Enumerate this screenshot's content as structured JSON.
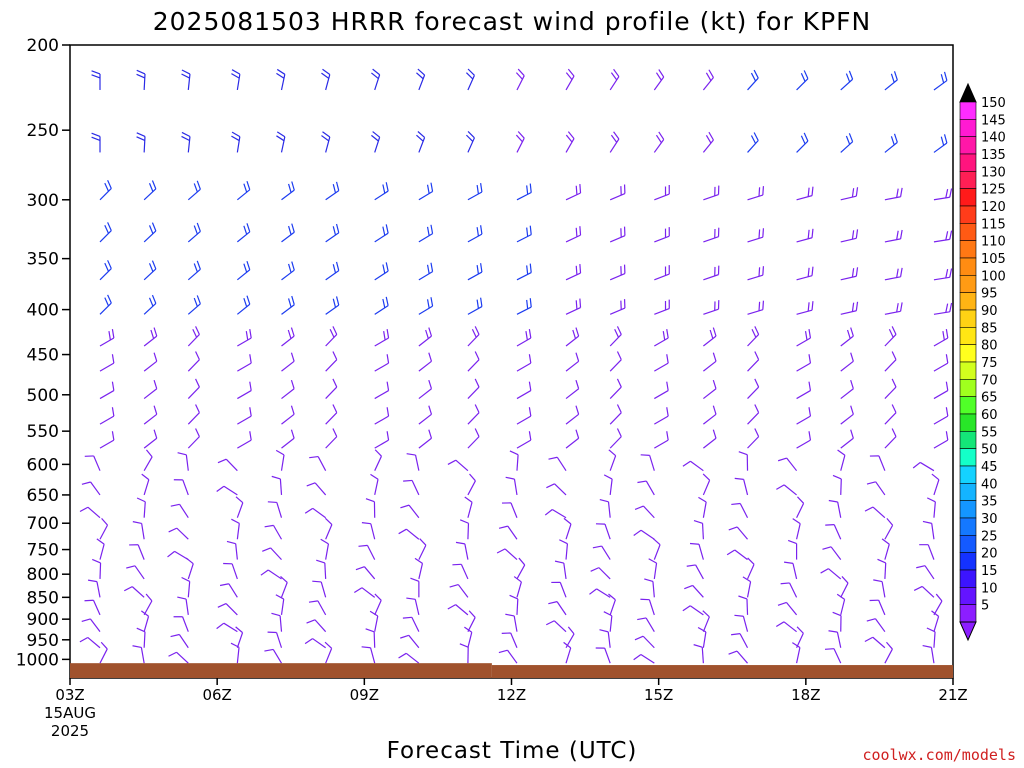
{
  "chart_data": {
    "type": "wind-barb profile",
    "title": "2025081503 HRRR forecast wind profile (kt) for KPFN",
    "xlabel": "Forecast Time (UTC)",
    "ylabel": "",
    "y_axis": {
      "scale": "log",
      "inverted": true,
      "range": [
        200,
        1050
      ],
      "ticks": [
        "200",
        "250",
        "300",
        "350",
        "400",
        "450",
        "500",
        "550",
        "600",
        "650",
        "700",
        "750",
        "800",
        "850",
        "900",
        "950",
        "1000"
      ]
    },
    "x_axis": {
      "range": [
        3,
        21
      ],
      "ticks": [
        {
          "value": 3,
          "label": "03Z",
          "sub1": "15AUG",
          "sub2": "2025"
        },
        {
          "value": 6,
          "label": "06Z"
        },
        {
          "value": 9,
          "label": "09Z"
        },
        {
          "value": 12,
          "label": "12Z"
        },
        {
          "value": 15,
          "label": "15Z"
        },
        {
          "value": 18,
          "label": "18Z"
        },
        {
          "value": 21,
          "label": "21Z"
        }
      ]
    },
    "colorbar": {
      "labels": [
        "150",
        "145",
        "140",
        "135",
        "130",
        "125",
        "120",
        "115",
        "110",
        "105",
        "100",
        "95",
        "90",
        "85",
        "80",
        "75",
        "70",
        "65",
        "60",
        "55",
        "50",
        "45",
        "40",
        "35",
        "30",
        "25",
        "20",
        "15",
        "10",
        "5"
      ],
      "colors": [
        "#ff2cff",
        "#ff1ad2",
        "#ff17a8",
        "#ff147e",
        "#ff1f55",
        "#ff1a1a",
        "#ff3c1a",
        "#ff5a14",
        "#ff7814",
        "#ff8c12",
        "#ff9b14",
        "#ffb414",
        "#ffd214",
        "#ffe614",
        "#ffff1e",
        "#d2ff1e",
        "#a0ff1e",
        "#50ff28",
        "#28e628",
        "#14e678",
        "#14ffc8",
        "#14d2ff",
        "#14b4ff",
        "#1496ff",
        "#1478ff",
        "#145aff",
        "#1432ff",
        "#3c14ff",
        "#6414ff",
        "#8c1eff"
      ]
    },
    "levels": [
      225,
      265,
      300,
      335,
      370,
      405,
      440,
      470,
      505,
      540,
      575,
      610,
      650,
      690,
      730,
      770,
      810,
      850,
      890,
      930,
      970,
      1010
    ],
    "times": [
      3.0,
      3.9,
      4.8,
      5.8,
      6.7,
      7.6,
      8.6,
      9.5,
      10.5,
      11.5,
      12.5,
      13.4,
      14.3,
      15.3,
      16.2,
      17.2,
      18.1,
      19.0,
      20.0,
      20.9
    ],
    "surface_pressure": 1010,
    "surface_pressure_after_12z": 1015,
    "surface_color": "#a0522d"
  },
  "credit": "coolwx.com/models"
}
